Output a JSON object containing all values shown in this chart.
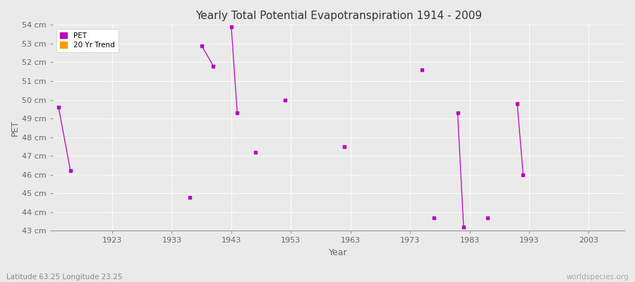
{
  "title": "Yearly Total Potential Evapotranspiration 1914 - 2009",
  "xlabel": "Year",
  "ylabel": "PET",
  "subtitle": "Latitude 63.25 Longitude 23.25",
  "watermark": "worldspecies.org",
  "xlim": [
    1913,
    2009
  ],
  "ylim": [
    43,
    54
  ],
  "yticks": [
    43,
    44,
    45,
    46,
    47,
    48,
    49,
    50,
    51,
    52,
    53,
    54
  ],
  "ytick_labels": [
    "43 cm",
    "44 cm",
    "45 cm",
    "46 cm",
    "47 cm",
    "48 cm",
    "49 cm",
    "50 cm",
    "51 cm",
    "52 cm",
    "53 cm",
    "54 cm"
  ],
  "xticks": [
    1923,
    1933,
    1943,
    1953,
    1963,
    1973,
    1983,
    1993,
    2003
  ],
  "bg_color": "#eaeaea",
  "plot_bg_color": "#eaeaea",
  "grid_color": "#ffffff",
  "pet_color": "#bb00bb",
  "pet_marker": "s",
  "pet_marker_size": 2.5,
  "pet_data": [
    [
      1914,
      49.6
    ],
    [
      1916,
      46.2
    ],
    [
      1936,
      44.8
    ],
    [
      1938,
      52.9
    ],
    [
      1940,
      51.8
    ],
    [
      1943,
      53.9
    ],
    [
      1944,
      49.3
    ],
    [
      1947,
      47.2
    ],
    [
      1952,
      50.0
    ],
    [
      1962,
      47.5
    ],
    [
      1975,
      51.6
    ],
    [
      1977,
      43.7
    ],
    [
      1981,
      49.3
    ],
    [
      1982,
      43.2
    ],
    [
      1986,
      43.7
    ],
    [
      1991,
      49.8
    ],
    [
      1992,
      46.0
    ]
  ],
  "trend_segments": [
    [
      [
        1914,
        49.6
      ],
      [
        1916,
        46.2
      ]
    ],
    [
      [
        1938,
        52.9
      ],
      [
        1940,
        51.8
      ]
    ],
    [
      [
        1943,
        53.9
      ],
      [
        1944,
        49.3
      ]
    ],
    [
      [
        1981,
        49.3
      ],
      [
        1982,
        43.2
      ]
    ],
    [
      [
        1991,
        49.8
      ],
      [
        1992,
        46.0
      ]
    ]
  ],
  "figsize": [
    9.0,
    4.0
  ],
  "dpi": 100,
  "title_fontsize": 11,
  "tick_fontsize": 8,
  "label_fontsize": 9
}
